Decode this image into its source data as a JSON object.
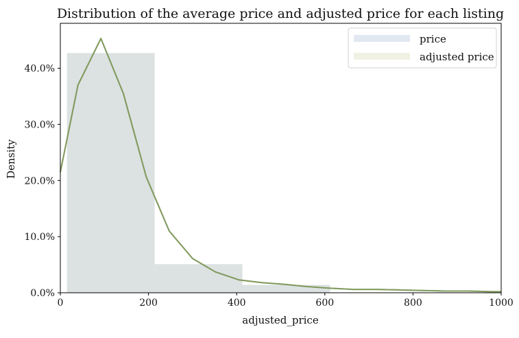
{
  "chart_data": {
    "type": "bar",
    "title": "Distribution of the average price and adjusted price for each listing",
    "xlabel": "adjusted_price",
    "ylabel": "Density",
    "xlim": [
      0,
      1000
    ],
    "ylim": [
      0,
      0.48
    ],
    "grid": false,
    "legend_position": "top-right",
    "x_ticks": [
      0,
      200,
      400,
      600,
      800,
      1000
    ],
    "y_ticks": [
      0,
      0.1,
      0.2,
      0.3,
      0.4
    ],
    "x_tick_labels": [
      "0",
      "200",
      "400",
      "600",
      "800",
      "1000"
    ],
    "y_tick_labels": [
      "0.0%",
      "10.0%",
      "20.0%",
      "30.0%",
      "40.0%"
    ],
    "histogram": {
      "bins": [
        {
          "start": 15,
          "end": 214,
          "density": 0.427
        },
        {
          "start": 214,
          "end": 413,
          "density": 0.051
        },
        {
          "start": 413,
          "end": 612,
          "density": 0.014
        }
      ]
    },
    "series": [
      {
        "name": "price",
        "color": "#c9d6e3",
        "x": [
          0,
          40,
          92,
          143,
          195,
          247,
          300,
          352,
          405,
          457,
          509,
          560,
          612,
          664,
          717,
          769,
          821,
          873,
          925,
          977,
          1000
        ],
        "values": [
          0.215,
          0.37,
          0.453,
          0.355,
          0.206,
          0.11,
          0.061,
          0.037,
          0.023,
          0.018,
          0.015,
          0.011,
          0.008,
          0.006,
          0.006,
          0.005,
          0.004,
          0.003,
          0.003,
          0.002,
          0.002
        ]
      },
      {
        "name": "adjusted price",
        "color": "#e5e6cc",
        "x": [
          0,
          40,
          92,
          143,
          195,
          247,
          300,
          352,
          405,
          457,
          509,
          560,
          612,
          664,
          717,
          769,
          821,
          873,
          925,
          977,
          1000
        ],
        "values": [
          0.215,
          0.37,
          0.453,
          0.355,
          0.206,
          0.11,
          0.061,
          0.037,
          0.023,
          0.018,
          0.015,
          0.011,
          0.008,
          0.006,
          0.006,
          0.005,
          0.004,
          0.003,
          0.003,
          0.002,
          0.002
        ]
      }
    ],
    "colors": {
      "bar_fill": "#dce2e2",
      "line_price": "#8a9a7a",
      "line_adjusted": "#7f9a57",
      "axis": "#000000"
    }
  }
}
